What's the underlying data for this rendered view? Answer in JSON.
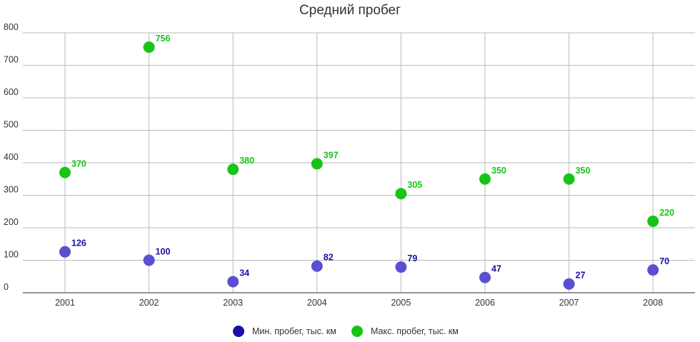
{
  "chart_data": {
    "type": "scatter",
    "title": "Средний пробег",
    "xlabel": "",
    "ylabel": "",
    "categories": [
      "2001",
      "2002",
      "2003",
      "2004",
      "2005",
      "2006",
      "2007",
      "2008"
    ],
    "yticks": [
      "0",
      "100",
      "200",
      "300",
      "400",
      "500",
      "600",
      "700",
      "800"
    ],
    "ylim": [
      0,
      800
    ],
    "grid": true,
    "legend_position": "bottom-center",
    "series": [
      {
        "name": "Мин. пробег, тыс. км",
        "color": "#5a4fd0",
        "label_color": "#1a10a8",
        "values": [
          126,
          100,
          34,
          82,
          79,
          47,
          27,
          70
        ],
        "labels": [
          "126",
          "100",
          "34",
          "82",
          "79",
          "47",
          "27",
          "70"
        ]
      },
      {
        "name": "Макс. пробег, тыс. км",
        "color": "#19c419",
        "label_color": "#19c419",
        "values": [
          370,
          756,
          380,
          397,
          305,
          350,
          350,
          220
        ],
        "labels": [
          "370",
          "756",
          "380",
          "397",
          "305",
          "350",
          "350",
          "220"
        ]
      }
    ],
    "legend_markers": [
      "#1a10a8",
      "#19c419"
    ]
  }
}
